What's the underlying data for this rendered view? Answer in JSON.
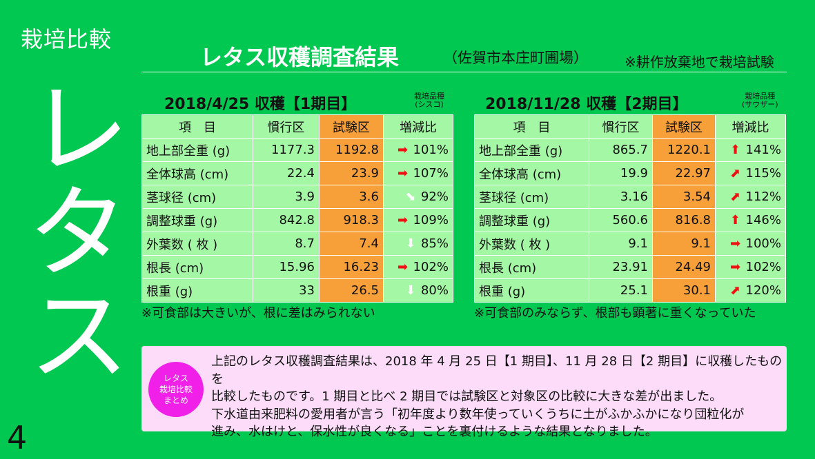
{
  "section_label": "栽培比較",
  "big_title": "レタス",
  "page_number": "4",
  "header": {
    "title": "レタス収穫調査結果",
    "subtitle": "（佐賀市本庄町圃場）",
    "note": "※耕作放棄地で栽培試験"
  },
  "tables": [
    {
      "title": "2018/4/25 収穫【1期目】",
      "variety_label": "栽培品種",
      "variety_name": "(シスコ)",
      "headers": [
        "項　目",
        "慣行区",
        "試験区",
        "増減比"
      ],
      "rows": [
        {
          "item": "地上部全重 (g)",
          "conventional": "1177.3",
          "test": "1192.8",
          "arrow": "right-arrow-icon",
          "ratio": "101%"
        },
        {
          "item": "全体球高 (cm)",
          "conventional": "22.4",
          "test": "23.9",
          "arrow": "right-arrow-icon",
          "ratio": "107%"
        },
        {
          "item": "茎球径 (cm)",
          "conventional": "3.9",
          "test": "3.6",
          "arrow": "down-right-arrow-icon",
          "ratio": "92%"
        },
        {
          "item": "調整球重 (g)",
          "conventional": "842.8",
          "test": "918.3",
          "arrow": "right-arrow-icon",
          "ratio": "109%"
        },
        {
          "item": "外葉数 ( 枚 )",
          "conventional": "8.7",
          "test": "7.4",
          "arrow": "down-arrow-icon",
          "ratio": "85%"
        },
        {
          "item": "根長 (cm)",
          "conventional": "15.96",
          "test": "16.23",
          "arrow": "right-arrow-icon",
          "ratio": "102%"
        },
        {
          "item": "根重 (g)",
          "conventional": "33",
          "test": "26.5",
          "arrow": "down-arrow-icon",
          "ratio": "80%"
        }
      ],
      "note": "※可食部は大きいが、根に差はみられない"
    },
    {
      "title": "2018/11/28 収穫【2期目】",
      "variety_label": "栽培品種",
      "variety_name": "(サウザー)",
      "headers": [
        "項　目",
        "慣行区",
        "試験区",
        "増減比"
      ],
      "rows": [
        {
          "item": "地上部全重 (g)",
          "conventional": "865.7",
          "test": "1220.1",
          "arrow": "up-arrow-icon",
          "ratio": "141%"
        },
        {
          "item": "全体球高 (cm)",
          "conventional": "19.9",
          "test": "22.97",
          "arrow": "up-right-arrow-icon",
          "ratio": "115%"
        },
        {
          "item": "茎球径 (cm)",
          "conventional": "3.16",
          "test": "3.54",
          "arrow": "up-right-arrow-icon",
          "ratio": "112%"
        },
        {
          "item": "調整球重 (g)",
          "conventional": "560.6",
          "test": "816.8",
          "arrow": "up-arrow-icon",
          "ratio": "146%"
        },
        {
          "item": "外葉数 ( 枚 )",
          "conventional": "9.1",
          "test": "9.1",
          "arrow": "right-arrow-icon",
          "ratio": "100%"
        },
        {
          "item": "根長 (cm)",
          "conventional": "23.91",
          "test": "24.49",
          "arrow": "right-arrow-icon",
          "ratio": "102%"
        },
        {
          "item": "根重 (g)",
          "conventional": "25.1",
          "test": "30.1",
          "arrow": "up-right-arrow-icon",
          "ratio": "120%"
        }
      ],
      "note": "※可食部のみならず、根部も顕著に重くなっていた"
    }
  ],
  "summary": {
    "badge_lines": [
      "レタス",
      "栽培比較",
      "まとめ"
    ],
    "lines": [
      "上記のレタス収穫調査結果は、2018 年 4 月 25 日【1 期目】、11 月 28 日【2 期目】に収穫したものを",
      "比較したものです。1 期目と比べ 2 期目では試験区と対象区の比較に大きな差が出ました。",
      "下水道由来肥料の愛用者が言う「初年度より数年使っていくうちに土がふかふかになり団粒化が",
      "進み、水はけと、保水性が良くなる」ことを裏付けるような結果となりました。"
    ]
  },
  "colors": {
    "background": "#00c850",
    "cell_green": "#a4f7a4",
    "cell_orange": "#f7a03a",
    "summary_bg": "#fcdcf8",
    "badge": "#f020e8",
    "arrow_red": "#ee1111"
  }
}
